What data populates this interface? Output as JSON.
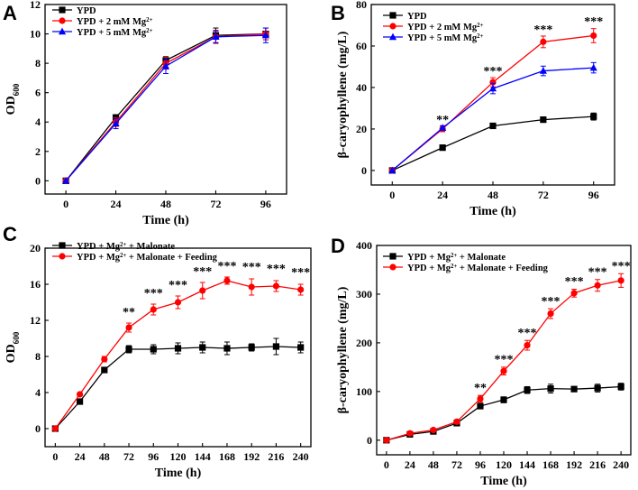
{
  "chart_data": [
    {
      "panel": "A",
      "type": "line",
      "xlabel": "Time (h)",
      "ylabel": "OD600",
      "x": [
        0,
        24,
        48,
        72,
        96
      ],
      "xlim": [
        -10,
        106
      ],
      "ylim": [
        -0.9,
        12
      ],
      "xticks": [
        0,
        24,
        48,
        72,
        96
      ],
      "yticks": [
        0,
        2,
        4,
        6,
        8,
        10,
        12
      ],
      "legend_position": "top-left",
      "series": [
        {
          "name": "YPD",
          "color": "#000000",
          "marker": "square",
          "values": [
            0,
            4.3,
            8.2,
            9.9,
            10.0
          ],
          "errors": [
            0,
            0.2,
            0.25,
            0.5,
            0.4
          ]
        },
        {
          "name": "YPD + 2 mM Mg2+",
          "color": "#ff0000",
          "marker": "circle",
          "values": [
            0,
            4.0,
            8.0,
            9.8,
            10.0
          ],
          "errors": [
            0,
            0.3,
            0.4,
            0.45,
            0.4
          ]
        },
        {
          "name": "YPD + 5 mM Mg2+",
          "color": "#0000ff",
          "marker": "triangle",
          "values": [
            0,
            3.9,
            7.8,
            9.8,
            9.9
          ],
          "errors": [
            0,
            0.35,
            0.5,
            0.4,
            0.5
          ]
        }
      ],
      "annotations": []
    },
    {
      "panel": "B",
      "type": "line",
      "xlabel": "Time (h)",
      "ylabel": "β-caryophyllene (mg/L)",
      "x": [
        0,
        24,
        48,
        72,
        96
      ],
      "xlim": [
        -10,
        106
      ],
      "ylim": [
        -7,
        80
      ],
      "xticks": [
        0,
        24,
        48,
        72,
        96
      ],
      "yticks": [
        0,
        20,
        40,
        60,
        80
      ],
      "legend_position": "top-left",
      "series": [
        {
          "name": "YPD",
          "color": "#000000",
          "marker": "square",
          "values": [
            0,
            11,
            21.5,
            24.5,
            26
          ],
          "errors": [
            0,
            0.6,
            0.8,
            1.3,
            1.7
          ]
        },
        {
          "name": "YPD + 2 mM Mg2+",
          "color": "#ff0000",
          "marker": "circle",
          "values": [
            0,
            20,
            42.5,
            62,
            65
          ],
          "errors": [
            0,
            1.3,
            2.2,
            2.8,
            3.4
          ]
        },
        {
          "name": "YPD + 5 mM Mg2+",
          "color": "#0000ff",
          "marker": "triangle",
          "values": [
            0,
            20.5,
            39.5,
            48,
            49.5
          ],
          "errors": [
            0,
            1.1,
            2.5,
            2.3,
            2.5
          ]
        }
      ],
      "annotations": [
        {
          "x": 24,
          "y": 22.5,
          "text": "**"
        },
        {
          "x": 48,
          "y": 46,
          "text": "***"
        },
        {
          "x": 72,
          "y": 66,
          "text": "***"
        },
        {
          "x": 96,
          "y": 70,
          "text": "***"
        }
      ]
    },
    {
      "panel": "C",
      "type": "line",
      "xlabel": "Time (h)",
      "ylabel": "OD600",
      "x": [
        0,
        24,
        48,
        72,
        96,
        120,
        144,
        168,
        192,
        216,
        240
      ],
      "xlim": [
        -10,
        250
      ],
      "ylim": [
        -2,
        20
      ],
      "xticks": [
        0,
        24,
        48,
        72,
        96,
        120,
        144,
        168,
        192,
        216,
        240
      ],
      "yticks": [
        0,
        4,
        8,
        12,
        16,
        20
      ],
      "legend_position": "top-left",
      "series": [
        {
          "name": "YPD + Mg2+ + Malonate",
          "color": "#000000",
          "marker": "square",
          "values": [
            0,
            3.0,
            6.5,
            8.8,
            8.8,
            8.9,
            9.0,
            8.9,
            9.0,
            9.1,
            9.0
          ],
          "errors": [
            0,
            0.1,
            0.2,
            0.4,
            0.5,
            0.6,
            0.6,
            0.7,
            0.4,
            0.9,
            0.6
          ]
        },
        {
          "name": "YPD + Mg2+ + Malonate + Feeding",
          "color": "#ff0000",
          "marker": "circle",
          "values": [
            0,
            3.8,
            7.7,
            11.2,
            13.2,
            14.0,
            15.3,
            16.4,
            15.7,
            15.8,
            15.4
          ],
          "errors": [
            0,
            0.2,
            0.3,
            0.5,
            0.6,
            0.7,
            0.9,
            0.4,
            0.9,
            0.6,
            0.6
          ]
        }
      ],
      "annotations": [
        {
          "x": 72,
          "y": 12.5,
          "text": "**"
        },
        {
          "x": 96,
          "y": 14.6,
          "text": "***"
        },
        {
          "x": 120,
          "y": 15.5,
          "text": "***"
        },
        {
          "x": 144,
          "y": 17.0,
          "text": "***"
        },
        {
          "x": 168,
          "y": 17.6,
          "text": "***"
        },
        {
          "x": 192,
          "y": 17.5,
          "text": "***"
        },
        {
          "x": 216,
          "y": 17.3,
          "text": "***"
        },
        {
          "x": 240,
          "y": 16.9,
          "text": "***"
        }
      ]
    },
    {
      "panel": "D",
      "type": "line",
      "xlabel": "Time (h)",
      "ylabel": "β-caryophyllene (mg/L)",
      "x": [
        0,
        24,
        48,
        72,
        96,
        120,
        144,
        168,
        192,
        216,
        240
      ],
      "xlim": [
        -10,
        250
      ],
      "ylim": [
        -30,
        400
      ],
      "xticks": [
        0,
        24,
        48,
        72,
        96,
        120,
        144,
        168,
        192,
        216,
        240
      ],
      "yticks": [
        0,
        100,
        200,
        300,
        400
      ],
      "legend_position": "top-left",
      "series": [
        {
          "name": "YPD + Mg2+ + Malonate",
          "color": "#000000",
          "marker": "square",
          "values": [
            0,
            12,
            18,
            35,
            70,
            83,
            103,
            106,
            105,
            107,
            110
          ],
          "errors": [
            0,
            2,
            3,
            4,
            5,
            6,
            7,
            9,
            5,
            8,
            7
          ]
        },
        {
          "name": "YPD + Mg2+ + Malonate + Feeding",
          "color": "#ff0000",
          "marker": "circle",
          "values": [
            0,
            14,
            21,
            38,
            85,
            142,
            195,
            260,
            302,
            318,
            328
          ],
          "errors": [
            0,
            2,
            3,
            4,
            7,
            8,
            10,
            10,
            8,
            12,
            14
          ]
        }
      ],
      "annotations": [
        {
          "x": 96,
          "y": 100,
          "text": "**"
        },
        {
          "x": 120,
          "y": 158,
          "text": "***"
        },
        {
          "x": 144,
          "y": 213,
          "text": "***"
        },
        {
          "x": 168,
          "y": 278,
          "text": "***"
        },
        {
          "x": 192,
          "y": 318,
          "text": "***"
        },
        {
          "x": 216,
          "y": 338,
          "text": "***"
        },
        {
          "x": 240,
          "y": 350,
          "text": "***"
        }
      ]
    }
  ]
}
